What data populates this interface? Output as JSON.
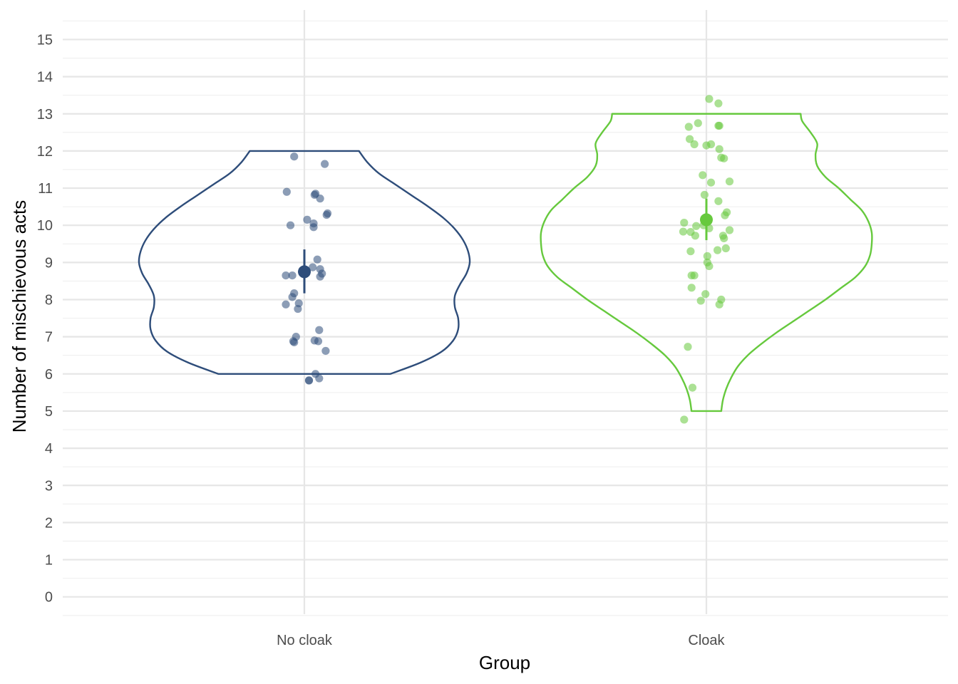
{
  "chart_data": {
    "type": "violin",
    "xlabel": "Group",
    "ylabel": "Number of mischievous acts",
    "categories": [
      "No cloak",
      "Cloak"
    ],
    "ylim": [
      -0.5,
      15.5
    ],
    "yticks": [
      0,
      1,
      2,
      3,
      4,
      5,
      6,
      7,
      8,
      9,
      10,
      11,
      12,
      13,
      14,
      15
    ],
    "grid": true,
    "legend": "none",
    "series": [
      {
        "category": "No cloak",
        "color": "#2e4d7a",
        "mean": 8.75,
        "ci": [
          8.17,
          9.35
        ],
        "range": [
          6,
          12
        ],
        "violin_profile": [
          [
            6.0,
            0.52
          ],
          [
            6.3,
            0.7
          ],
          [
            6.6,
            0.83
          ],
          [
            6.9,
            0.9
          ],
          [
            7.2,
            0.93
          ],
          [
            7.5,
            0.93
          ],
          [
            7.8,
            0.91
          ],
          [
            8.1,
            0.91
          ],
          [
            8.4,
            0.94
          ],
          [
            8.7,
            0.98
          ],
          [
            9.0,
            1.0
          ],
          [
            9.3,
            0.99
          ],
          [
            9.6,
            0.96
          ],
          [
            9.9,
            0.91
          ],
          [
            10.2,
            0.84
          ],
          [
            10.5,
            0.75
          ],
          [
            10.8,
            0.65
          ],
          [
            11.1,
            0.55
          ],
          [
            11.4,
            0.45
          ],
          [
            11.7,
            0.38
          ],
          [
            12.0,
            0.33
          ]
        ],
        "points": [
          [
            -0.11,
            11.85
          ],
          [
            0.22,
            11.65
          ],
          [
            -0.19,
            10.9
          ],
          [
            0.12,
            10.85
          ],
          [
            0.11,
            10.82
          ],
          [
            0.17,
            10.72
          ],
          [
            0.25,
            10.32
          ],
          [
            0.24,
            10.28
          ],
          [
            0.03,
            10.15
          ],
          [
            0.1,
            10.05
          ],
          [
            -0.15,
            10.0
          ],
          [
            0.1,
            9.95
          ],
          [
            0.14,
            9.08
          ],
          [
            0.09,
            8.87
          ],
          [
            0.17,
            8.82
          ],
          [
            0.19,
            8.7
          ],
          [
            0.17,
            8.62
          ],
          [
            -0.2,
            8.65
          ],
          [
            -0.13,
            8.65
          ],
          [
            -0.11,
            8.17
          ],
          [
            -0.13,
            8.07
          ],
          [
            -0.06,
            7.9
          ],
          [
            -0.2,
            7.87
          ],
          [
            -0.07,
            7.75
          ],
          [
            0.16,
            7.18
          ],
          [
            -0.09,
            7.0
          ],
          [
            -0.12,
            6.88
          ],
          [
            -0.11,
            6.85
          ],
          [
            0.11,
            6.9
          ],
          [
            0.15,
            6.88
          ],
          [
            0.23,
            6.62
          ],
          [
            0.12,
            6.0
          ],
          [
            0.16,
            5.88
          ],
          [
            0.05,
            5.82
          ],
          [
            0.05,
            5.83
          ]
        ]
      },
      {
        "category": "Cloak",
        "color": "#66c93d",
        "mean": 10.15,
        "ci": [
          9.6,
          10.72
        ],
        "range": [
          5,
          13
        ],
        "violin_profile": [
          [
            5.0,
            0.09
          ],
          [
            5.3,
            0.1
          ],
          [
            5.6,
            0.12
          ],
          [
            5.9,
            0.15
          ],
          [
            6.2,
            0.19
          ],
          [
            6.5,
            0.25
          ],
          [
            6.8,
            0.33
          ],
          [
            7.1,
            0.42
          ],
          [
            7.4,
            0.52
          ],
          [
            7.7,
            0.62
          ],
          [
            8.0,
            0.72
          ],
          [
            8.3,
            0.81
          ],
          [
            8.6,
            0.9
          ],
          [
            8.9,
            0.96
          ],
          [
            9.2,
            0.99
          ],
          [
            9.5,
            1.0
          ],
          [
            9.8,
            1.0
          ],
          [
            10.1,
            0.98
          ],
          [
            10.4,
            0.94
          ],
          [
            10.7,
            0.87
          ],
          [
            11.0,
            0.8
          ],
          [
            11.3,
            0.72
          ],
          [
            11.6,
            0.67
          ],
          [
            11.9,
            0.66
          ],
          [
            12.2,
            0.67
          ],
          [
            12.5,
            0.63
          ],
          [
            12.8,
            0.58
          ],
          [
            13.0,
            0.57
          ]
        ],
        "points": [
          [
            0.03,
            13.4
          ],
          [
            0.13,
            13.28
          ],
          [
            -0.19,
            12.65
          ],
          [
            -0.09,
            12.75
          ],
          [
            0.14,
            12.68
          ],
          [
            0.13,
            12.68
          ],
          [
            -0.18,
            12.32
          ],
          [
            -0.13,
            12.18
          ],
          [
            0.0,
            12.15
          ],
          [
            0.05,
            12.18
          ],
          [
            0.14,
            12.05
          ],
          [
            0.16,
            11.82
          ],
          [
            0.19,
            11.8
          ],
          [
            -0.04,
            11.35
          ],
          [
            0.05,
            11.15
          ],
          [
            0.25,
            11.18
          ],
          [
            -0.02,
            10.82
          ],
          [
            0.13,
            10.65
          ],
          [
            0.22,
            10.35
          ],
          [
            0.2,
            10.27
          ],
          [
            -0.24,
            10.07
          ],
          [
            -0.11,
            9.98
          ],
          [
            -0.03,
            10.0
          ],
          [
            0.03,
            9.92
          ],
          [
            -0.25,
            9.83
          ],
          [
            -0.17,
            9.82
          ],
          [
            -0.12,
            9.72
          ],
          [
            0.25,
            9.87
          ],
          [
            0.18,
            9.72
          ],
          [
            0.19,
            9.65
          ],
          [
            0.21,
            9.38
          ],
          [
            0.12,
            9.33
          ],
          [
            -0.17,
            9.3
          ],
          [
            0.01,
            9.17
          ],
          [
            0.01,
            9.0
          ],
          [
            0.03,
            8.9
          ],
          [
            -0.16,
            8.65
          ],
          [
            -0.13,
            8.65
          ],
          [
            -0.16,
            8.32
          ],
          [
            -0.01,
            8.15
          ],
          [
            -0.06,
            7.97
          ],
          [
            0.16,
            8.0
          ],
          [
            0.14,
            7.87
          ],
          [
            -0.2,
            6.73
          ],
          [
            -0.15,
            5.63
          ],
          [
            -0.24,
            4.77
          ]
        ]
      }
    ]
  }
}
